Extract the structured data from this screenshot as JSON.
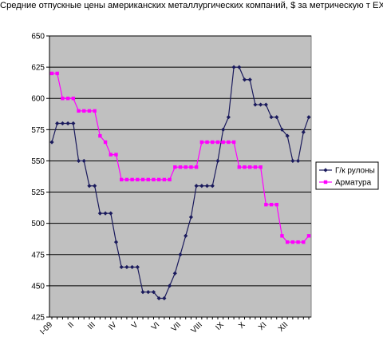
{
  "chart_data": {
    "type": "line",
    "title": "Средние отпускные цены американских металлургических компаний, $ за метрическую т EXW",
    "xlabel": "",
    "ylabel": "",
    "ylim": [
      425,
      650
    ],
    "yticks": [
      425,
      450,
      475,
      500,
      525,
      550,
      575,
      600,
      625,
      650
    ],
    "xtick_labels": [
      "I-09",
      "II",
      "III",
      "IV",
      "V",
      "VI",
      "VII",
      "VIII",
      "IX",
      "X",
      "XI",
      "XII"
    ],
    "points_per_month": 4,
    "grid": true,
    "legend_position": "right",
    "plot_background": "#c0c0c0",
    "series": [
      {
        "name": "Г/к рулоны",
        "color": "#1a1a5c",
        "marker": "diamond",
        "values": [
          565,
          580,
          580,
          580,
          580,
          550,
          550,
          530,
          530,
          508,
          508,
          508,
          485,
          465,
          465,
          465,
          465,
          445,
          445,
          445,
          440,
          440,
          450,
          460,
          475,
          490,
          505,
          530,
          530,
          530,
          530,
          550,
          575,
          585,
          625,
          625,
          615,
          615,
          595,
          595,
          595,
          585,
          585,
          575,
          570,
          550,
          550,
          573,
          585
        ]
      },
      {
        "name": "Арматура",
        "color": "#ff00ff",
        "marker": "square",
        "values": [
          620,
          620,
          600,
          600,
          600,
          590,
          590,
          590,
          590,
          570,
          565,
          555,
          555,
          535,
          535,
          535,
          535,
          535,
          535,
          535,
          535,
          535,
          535,
          545,
          545,
          545,
          545,
          545,
          565,
          565,
          565,
          565,
          565,
          565,
          565,
          545,
          545,
          545,
          545,
          545,
          515,
          515,
          515,
          490,
          485,
          485,
          485,
          485,
          490
        ]
      }
    ]
  }
}
